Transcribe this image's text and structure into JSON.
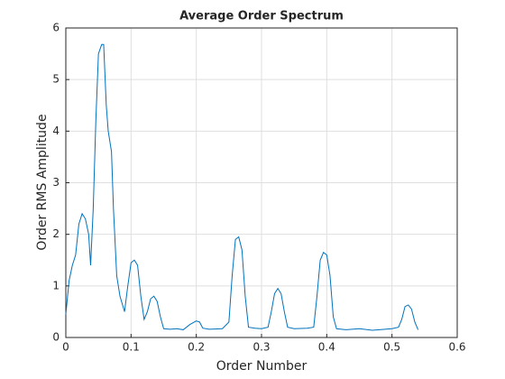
{
  "chart_data": {
    "type": "line",
    "title": "Average Order Spectrum",
    "x_label": "Order Number",
    "y_label": "Order RMS Amplitude",
    "x": [
      0,
      0.005,
      0.01,
      0.015,
      0.02,
      0.025,
      0.03,
      0.035,
      0.038,
      0.042,
      0.046,
      0.05,
      0.055,
      0.058,
      0.062,
      0.065,
      0.07,
      0.073,
      0.078,
      0.083,
      0.09,
      0.095,
      0.1,
      0.105,
      0.11,
      0.115,
      0.12,
      0.125,
      0.13,
      0.135,
      0.14,
      0.145,
      0.15,
      0.16,
      0.17,
      0.18,
      0.19,
      0.2,
      0.205,
      0.21,
      0.22,
      0.24,
      0.25,
      0.255,
      0.26,
      0.265,
      0.27,
      0.275,
      0.28,
      0.29,
      0.3,
      0.31,
      0.315,
      0.32,
      0.325,
      0.33,
      0.335,
      0.34,
      0.35,
      0.37,
      0.38,
      0.385,
      0.39,
      0.395,
      0.4,
      0.405,
      0.41,
      0.415,
      0.43,
      0.45,
      0.47,
      0.5,
      0.51,
      0.515,
      0.52,
      0.525,
      0.53,
      0.535,
      0.54
    ],
    "series": [
      {
        "name": "Average Order Spectrum",
        "color": "#0072bd",
        "values": [
          0.45,
          1.1,
          1.4,
          1.6,
          2.2,
          2.4,
          2.3,
          2.0,
          1.4,
          2.5,
          4.2,
          5.5,
          5.68,
          5.68,
          4.5,
          4.0,
          3.6,
          2.5,
          1.2,
          0.8,
          0.5,
          1.0,
          1.45,
          1.5,
          1.4,
          0.8,
          0.35,
          0.5,
          0.75,
          0.8,
          0.7,
          0.4,
          0.17,
          0.16,
          0.17,
          0.15,
          0.25,
          0.32,
          0.3,
          0.18,
          0.16,
          0.17,
          0.3,
          1.2,
          1.9,
          1.95,
          1.7,
          0.8,
          0.2,
          0.18,
          0.17,
          0.2,
          0.5,
          0.85,
          0.95,
          0.85,
          0.5,
          0.2,
          0.17,
          0.18,
          0.2,
          0.8,
          1.5,
          1.65,
          1.6,
          1.2,
          0.4,
          0.17,
          0.15,
          0.17,
          0.14,
          0.17,
          0.2,
          0.35,
          0.6,
          0.63,
          0.55,
          0.3,
          0.15
        ]
      }
    ],
    "xlim": [
      0,
      0.6
    ],
    "xticks": [
      0,
      0.1,
      0.2,
      0.3,
      0.4,
      0.5,
      0.6
    ],
    "ylim": [
      0,
      6
    ],
    "yticks": [
      0,
      1,
      2,
      3,
      4,
      5,
      6
    ],
    "grid": true
  }
}
